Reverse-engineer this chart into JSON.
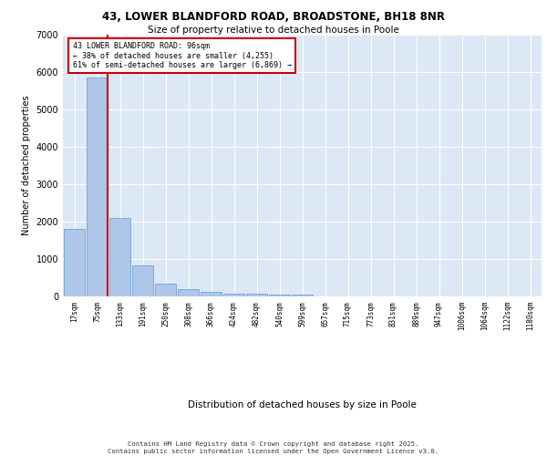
{
  "title1": "43, LOWER BLANDFORD ROAD, BROADSTONE, BH18 8NR",
  "title2": "Size of property relative to detached houses in Poole",
  "xlabel": "Distribution of detached houses by size in Poole",
  "ylabel": "Number of detached properties",
  "categories": [
    "17sqm",
    "75sqm",
    "133sqm",
    "191sqm",
    "250sqm",
    "308sqm",
    "366sqm",
    "424sqm",
    "482sqm",
    "540sqm",
    "599sqm",
    "657sqm",
    "715sqm",
    "773sqm",
    "831sqm",
    "889sqm",
    "947sqm",
    "1006sqm",
    "1064sqm",
    "1122sqm",
    "1180sqm"
  ],
  "values": [
    1800,
    5850,
    2100,
    820,
    330,
    200,
    120,
    85,
    70,
    55,
    40,
    0,
    0,
    0,
    0,
    0,
    0,
    0,
    0,
    0,
    0
  ],
  "bar_color": "#aec6e8",
  "bar_edge_color": "#5b9bd5",
  "background_color": "#dce8f5",
  "grid_color": "#ffffff",
  "vline_color": "#cc0000",
  "annotation_text": "43 LOWER BLANDFORD ROAD: 96sqm\n← 38% of detached houses are smaller (4,255)\n61% of semi-detached houses are larger (6,869) →",
  "annotation_box_color": "#ffffff",
  "annotation_box_edge": "#cc0000",
  "ylim": [
    0,
    7000
  ],
  "yticks": [
    0,
    1000,
    2000,
    3000,
    4000,
    5000,
    6000,
    7000
  ],
  "footer1": "Contains HM Land Registry data © Crown copyright and database right 2025.",
  "footer2": "Contains public sector information licensed under the Open Government Licence v3.0."
}
